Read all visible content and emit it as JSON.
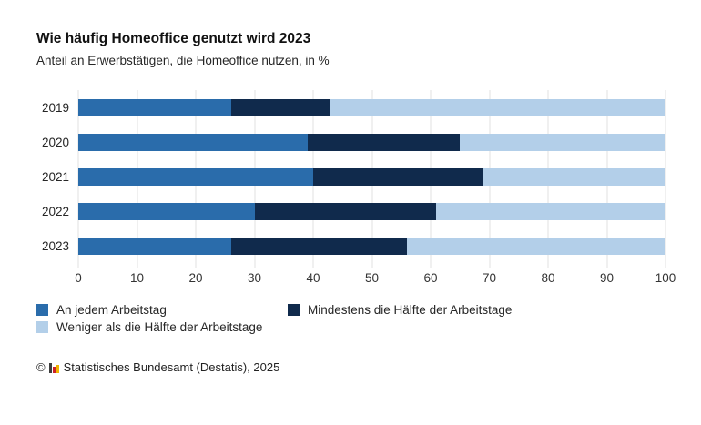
{
  "header": {
    "title": "Wie häufig Homeoffice genutzt wird 2023",
    "subtitle": "Anteil an Erwerbstätigen, die Homeoffice nutzen, in %"
  },
  "chart_data": {
    "type": "bar",
    "orientation": "horizontal",
    "stacked": true,
    "title": "Wie häufig Homeoffice genutzt wird 2023",
    "subtitle": "Anteil an Erwerbstätigen, die Homeoffice nutzen, in %",
    "xlabel": "",
    "ylabel": "",
    "xlim": [
      0,
      100
    ],
    "x_ticks": [
      0,
      10,
      20,
      30,
      40,
      50,
      60,
      70,
      80,
      90,
      100
    ],
    "grid": "vertical",
    "grid_color": "#e2e2e2",
    "legend_position": "bottom",
    "categories": [
      "2019",
      "2020",
      "2021",
      "2022",
      "2023"
    ],
    "series": [
      {
        "name": "An jedem Arbeitstag",
        "color": "#2a6cab",
        "values": [
          26,
          39,
          40,
          30,
          26
        ]
      },
      {
        "name": "Mindestens die Hälfte der Arbeitstage",
        "color": "#102a4c",
        "values": [
          17,
          26,
          29,
          31,
          30
        ]
      },
      {
        "name": "Weniger als die Hälfte der Arbeitstage",
        "color": "#b3cfe9",
        "values": [
          57,
          35,
          31,
          39,
          44
        ]
      }
    ]
  },
  "footer": {
    "copyright_symbol": "©",
    "logo_icon": "destatis-bar-chart-icon",
    "logo_colors": [
      "#3d3d3d",
      "#cc2229",
      "#f0b400"
    ],
    "source": "Statistisches Bundesamt (Destatis), 2025"
  }
}
